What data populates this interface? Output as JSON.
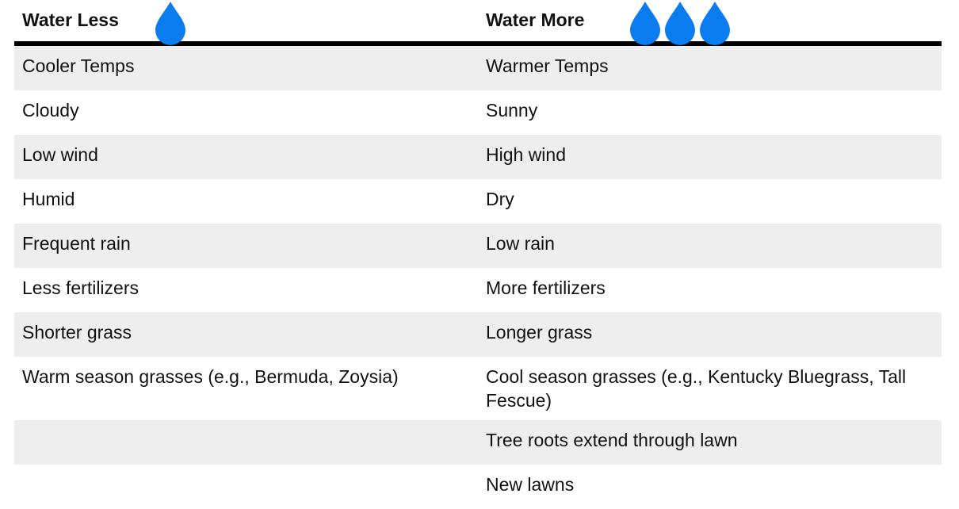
{
  "header": {
    "left_label": "Water Less",
    "right_label": "Water More",
    "left_drop_count": 1,
    "right_drop_count": 3,
    "drop_color": "#0a7cf0",
    "drop_icon": "water-drop-icon"
  },
  "rows": [
    {
      "left": "Cooler Temps",
      "right": "Warmer Temps"
    },
    {
      "left": "Cloudy",
      "right": "Sunny"
    },
    {
      "left": "Low wind",
      "right": "High wind"
    },
    {
      "left": "Humid",
      "right": "Dry"
    },
    {
      "left": "Frequent rain",
      "right": "Low rain"
    },
    {
      "left": "Less fertilizers",
      "right": "More fertilizers"
    },
    {
      "left": "Shorter grass",
      "right": "Longer grass"
    },
    {
      "left": "Warm season grasses (e.g., Bermuda, Zoysia)",
      "right": "Cool season grasses (e.g., Kentucky Bluegrass, Tall Fescue)"
    },
    {
      "left": "",
      "right": "Tree roots extend through lawn"
    },
    {
      "left": "",
      "right": "New lawns"
    }
  ],
  "colors": {
    "stripe": "#eeeeee",
    "rule": "#000000"
  }
}
